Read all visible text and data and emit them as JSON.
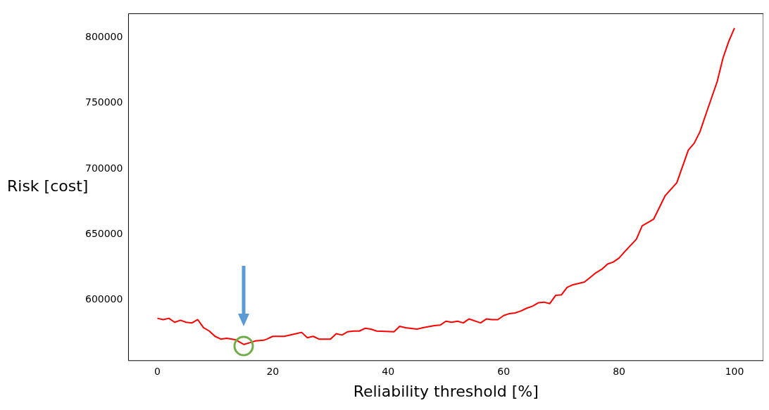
{
  "chart_data": {
    "type": "line",
    "xlabel": "Reliability threshold [%]",
    "ylabel": "Risk [cost]",
    "xlim": [
      -5,
      105
    ],
    "ylim": [
      554000,
      818000
    ],
    "xticks": [
      0,
      20,
      40,
      60,
      80,
      100
    ],
    "yticks": [
      600000,
      650000,
      700000,
      750000,
      800000
    ],
    "grid": false,
    "legend": false,
    "marker": "none",
    "line_style": "solid",
    "series": [
      {
        "color": "#ff0000",
        "x": [
          0,
          1,
          2,
          3,
          4,
          5,
          6,
          7,
          8,
          9,
          10,
          11,
          12,
          13.5,
          15,
          16.3,
          17,
          18.4,
          19,
          20,
          22,
          24,
          25,
          26,
          27,
          28,
          30,
          31,
          32,
          33,
          34,
          35,
          36,
          37,
          38,
          41,
          42,
          43,
          45,
          46,
          48,
          49,
          50,
          51,
          52,
          53,
          54,
          56,
          57,
          58,
          59,
          60,
          61,
          62,
          63,
          64,
          65,
          66,
          67,
          68,
          69,
          70,
          71,
          72,
          73,
          74,
          75,
          76,
          77,
          78,
          79,
          80,
          81,
          83,
          84,
          86,
          88,
          90,
          92,
          93,
          94,
          95.3,
          97,
          98,
          99,
          100
        ],
        "values": [
          586200,
          585200,
          586200,
          583200,
          584700,
          583200,
          582700,
          585200,
          579100,
          576500,
          572500,
          570400,
          571000,
          570000,
          566300,
          568000,
          569000,
          569500,
          570400,
          572500,
          572500,
          574500,
          575500,
          571400,
          572500,
          570400,
          570400,
          574500,
          573500,
          576000,
          576500,
          576500,
          578600,
          578000,
          576500,
          576000,
          580100,
          579000,
          578000,
          579000,
          580600,
          581000,
          584000,
          583200,
          584000,
          582700,
          585700,
          582700,
          585700,
          585200,
          585200,
          588300,
          589800,
          590300,
          591800,
          593900,
          595400,
          598000,
          598500,
          597400,
          603600,
          604000,
          609700,
          611700,
          612700,
          613800,
          617300,
          620900,
          623500,
          627500,
          629000,
          632100,
          637000,
          646400,
          656600,
          661700,
          679600,
          689300,
          714200,
          719300,
          728000,
          744800,
          766300,
          784100,
          796900,
          807100
        ]
      }
    ]
  }
}
